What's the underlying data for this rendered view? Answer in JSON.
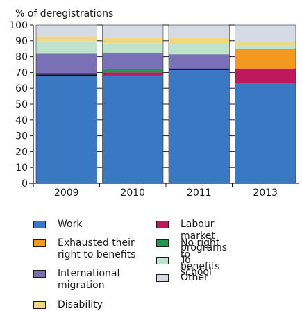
{
  "chart_data": {
    "type": "bar",
    "stacked": true,
    "title": "% of deregistrations",
    "ylim": [
      0,
      100
    ],
    "yticks": [
      0,
      10,
      20,
      30,
      40,
      50,
      60,
      70,
      80,
      90,
      100
    ],
    "categories": [
      "2009",
      "2010",
      "2011",
      "2013"
    ],
    "series": [
      {
        "name": "Work",
        "color": "#3a78c4",
        "values": [
          68,
          68,
          72,
          63
        ]
      },
      {
        "name": "Labour market programs",
        "color": "#c0185c",
        "values": [
          0.3,
          2,
          0,
          9.5
        ]
      },
      {
        "name": "No right to benefits",
        "color": "#1e9a50",
        "values": [
          0,
          2,
          0,
          0
        ]
      },
      {
        "name": "Exhausted their right to benefits",
        "color": "#f39a1e",
        "values": [
          0,
          0,
          0,
          12
        ]
      },
      {
        "name": "International migration",
        "color": "#7a70b6",
        "values": [
          13.5,
          10,
          9.5,
          0.5
        ]
      },
      {
        "name": "To school",
        "color": "#bfe3cc",
        "values": [
          8,
          6.5,
          6.5,
          2
        ]
      },
      {
        "name": "Disability",
        "color": "#f0d882",
        "values": [
          3,
          3.5,
          4,
          2
        ]
      },
      {
        "name": "Other",
        "color": "#d6dae4",
        "values": [
          7.2,
          8,
          8,
          11
        ]
      }
    ],
    "dividers": {
      "2009": [
        {
          "at": 68,
          "color": "#111111"
        },
        {
          "at": 69,
          "color": "#111111"
        }
      ],
      "2011": [
        {
          "at": 72,
          "color": "#111111"
        }
      ]
    },
    "grid": "dashes between bars"
  },
  "legend": {
    "items": [
      {
        "label": "Work",
        "color": "#3a78c4"
      },
      {
        "label": "Exhausted their right to benefits",
        "color": "#f39a1e"
      },
      {
        "label": "International migration",
        "color": "#7a70b6"
      },
      {
        "label": "Disability",
        "color": "#f0d882"
      },
      {
        "label": "Labour market programs",
        "color": "#c0185c"
      },
      {
        "label": "No right to benefits",
        "color": "#1e9a50"
      },
      {
        "label": "To school",
        "color": "#bfe3cc"
      },
      {
        "label": "Other",
        "color": "#d6dae4"
      }
    ]
  }
}
